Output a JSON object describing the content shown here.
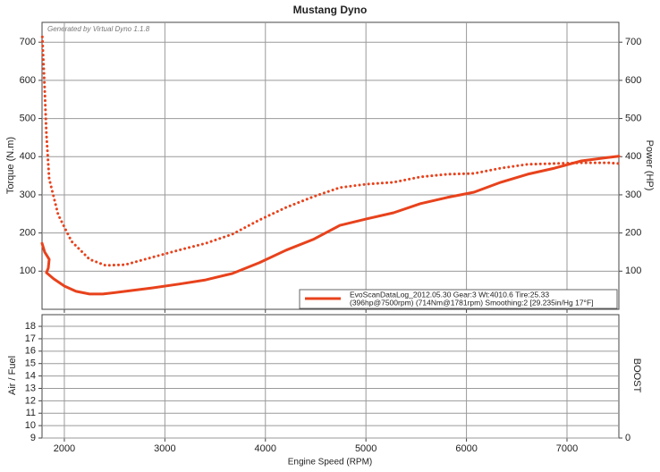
{
  "chart_data": [
    {
      "type": "line",
      "title": "Mustang Dyno",
      "note": "Generated by Virtual Dyno 1.1.8",
      "ylabel": "Torque (N.m)",
      "y2label": "Power (HP)",
      "xlim": [
        1778,
        7516
      ],
      "ylim": [
        0,
        752
      ],
      "yticks": [
        100,
        200,
        300,
        400,
        500,
        600,
        700
      ],
      "y2lim": [
        0,
        752
      ],
      "y2ticks": [
        100,
        200,
        300,
        400,
        500,
        600,
        700
      ],
      "grid": true,
      "legend": [
        "EvoScanDataLog_2012.05.30 Gear:3 Wt:4010.6 Tire:25.33",
        "(396hp@7500rpm) (714Nm@1781rpm) Smoothing:2 [29.235in/Hg 17°F]"
      ],
      "legend_position": "lower right",
      "series": [
        {
          "axis": "y2",
          "style": "solid",
          "color": "#e8421c",
          "x": [
            1778,
            1805,
            1849,
            1840,
            1822,
            1894,
            2000,
            2116,
            2250,
            2383,
            2605,
            2872,
            3139,
            3406,
            3673,
            3940,
            4207,
            4474,
            4741,
            5008,
            5275,
            5542,
            5808,
            6075,
            6342,
            6609,
            6876,
            7143,
            7410,
            7516
          ],
          "values": [
            173,
            150,
            131,
            108,
            96,
            80,
            61,
            47,
            40,
            40,
            47,
            56,
            66,
            77,
            94,
            122,
            155,
            183,
            220,
            237,
            253,
            277,
            293,
            307,
            333,
            354,
            370,
            389,
            398,
            401
          ]
        },
        {
          "axis": "y",
          "style": "dotted",
          "color": "#e8421c",
          "x": [
            1781,
            1805,
            1822,
            1849,
            1938,
            2072,
            2250,
            2410,
            2605,
            2872,
            3139,
            3406,
            3673,
            3940,
            4207,
            4474,
            4741,
            5008,
            5275,
            5542,
            5808,
            6075,
            6342,
            6609,
            6876,
            7143,
            7410,
            7516
          ],
          "values": [
            714,
            576,
            459,
            342,
            248,
            178,
            131,
            115,
            117,
            136,
            155,
            173,
            197,
            234,
            267,
            295,
            319,
            328,
            333,
            347,
            354,
            356,
            370,
            380,
            382,
            384,
            384,
            382
          ]
        }
      ]
    },
    {
      "type": "line",
      "ylabel": "Air / Fuel",
      "y2label": "BOOST",
      "xlabel": "Engine Speed (RPM)",
      "xlim": [
        1778,
        7516
      ],
      "xticks": [
        2000,
        3000,
        4000,
        5000,
        6000,
        7000
      ],
      "ylim": [
        9,
        18.94
      ],
      "yticks": [
        9,
        10,
        11,
        12,
        13,
        14,
        15,
        16,
        17,
        18
      ],
      "y2lim": [
        0,
        10
      ],
      "y2ticks": [
        0
      ],
      "grid": true,
      "series": []
    }
  ]
}
